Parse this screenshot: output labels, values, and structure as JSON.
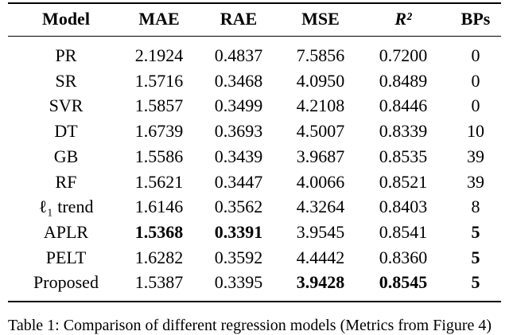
{
  "table": {
    "header": [
      {
        "text": "Model"
      },
      {
        "text": "MAE"
      },
      {
        "text": "RAE"
      },
      {
        "text": "MSE"
      },
      {
        "text": "R²",
        "italic": true
      },
      {
        "text": "BPs"
      }
    ],
    "rows": [
      [
        {
          "text": "PR"
        },
        {
          "text": "2.1924"
        },
        {
          "text": "0.4837"
        },
        {
          "text": "7.5856"
        },
        {
          "text": "0.7200"
        },
        {
          "text": "0"
        }
      ],
      [
        {
          "text": "SR"
        },
        {
          "text": "1.5716"
        },
        {
          "text": "0.3468"
        },
        {
          "text": "4.0950"
        },
        {
          "text": "0.8489"
        },
        {
          "text": "0"
        }
      ],
      [
        {
          "text": "SVR"
        },
        {
          "text": "1.5857"
        },
        {
          "text": "0.3499"
        },
        {
          "text": "4.2108"
        },
        {
          "text": "0.8446"
        },
        {
          "text": "0"
        }
      ],
      [
        {
          "text": "DT"
        },
        {
          "text": "1.6739"
        },
        {
          "text": "0.3693"
        },
        {
          "text": "4.5007"
        },
        {
          "text": "0.8339"
        },
        {
          "text": "10"
        }
      ],
      [
        {
          "text": "GB"
        },
        {
          "text": "1.5586"
        },
        {
          "text": "0.3439"
        },
        {
          "text": "3.9687"
        },
        {
          "text": "0.8535"
        },
        {
          "text": "39"
        }
      ],
      [
        {
          "text": "RF"
        },
        {
          "text": "1.5621"
        },
        {
          "text": "0.3447"
        },
        {
          "text": "4.0066"
        },
        {
          "text": "0.8521"
        },
        {
          "text": "39"
        }
      ],
      [
        {
          "text": "ℓ₁ trend"
        },
        {
          "text": "1.6146"
        },
        {
          "text": "0.3562"
        },
        {
          "text": "4.3264"
        },
        {
          "text": "0.8403"
        },
        {
          "text": "8"
        }
      ],
      [
        {
          "text": "APLR"
        },
        {
          "text": "1.5368",
          "bold": true
        },
        {
          "text": "0.3391",
          "bold": true
        },
        {
          "text": "3.9545"
        },
        {
          "text": "0.8541"
        },
        {
          "text": "5",
          "bold": true
        }
      ],
      [
        {
          "text": "PELT"
        },
        {
          "text": "1.6282"
        },
        {
          "text": "0.3592"
        },
        {
          "text": "4.4442"
        },
        {
          "text": "0.8360"
        },
        {
          "text": "5",
          "bold": true
        }
      ],
      [
        {
          "text": "Proposed"
        },
        {
          "text": "1.5387"
        },
        {
          "text": "0.3395"
        },
        {
          "text": "3.9428",
          "bold": true
        },
        {
          "text": "0.8545",
          "bold": true
        },
        {
          "text": "5",
          "bold": true
        }
      ]
    ],
    "caption": "Table 1: Comparison of different regression models (Metrics from Figure 4)"
  }
}
